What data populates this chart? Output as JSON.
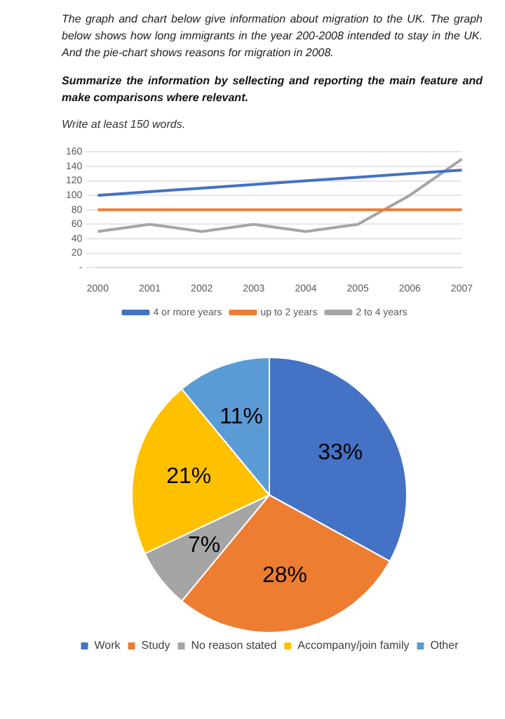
{
  "chart_data": [
    {
      "type": "line",
      "title": "The graph and chart below give information about migration to the UK. The graph below shows how long immigrants in the year 200-2008 intended to stay in the UK. And the pie-chart shows reasons for migration in 2008.",
      "subtitle": "Summarize the information by sellecting and reporting the main feature and make comparisons where relevant.",
      "annotations": [
        "Write at least 150 words."
      ],
      "categories": [
        "2000",
        "2001",
        "2002",
        "2003",
        "2004",
        "2005",
        "2006",
        "2007"
      ],
      "series": [
        {
          "name": "4 or more years",
          "color": "#4472c4",
          "values": [
            100,
            105,
            110,
            115,
            120,
            125,
            130,
            135
          ]
        },
        {
          "name": "up to 2 years",
          "color": "#ed7d31",
          "values": [
            80,
            80,
            80,
            80,
            80,
            80,
            80,
            80
          ]
        },
        {
          "name": "2 to 4 years",
          "color": "#a5a5a5",
          "values": [
            50,
            60,
            50,
            60,
            50,
            60,
            100,
            150
          ]
        }
      ],
      "ylim": [
        0,
        160
      ],
      "yticks": [
        {
          "value": 0,
          "label": "-"
        },
        20,
        40,
        60,
        80,
        100,
        120,
        140,
        160
      ],
      "grid": "y",
      "legend": "bottom",
      "marker": "none"
    },
    {
      "type": "pie",
      "categories": [
        "Work",
        "Study",
        "No reason stated",
        "Accompany/join family",
        "Other"
      ],
      "values": [
        33,
        28,
        7,
        21,
        11
      ],
      "colors": [
        "#4472c4",
        "#ed7d31",
        "#a5a5a5",
        "#ffc000",
        "#5b9bd5"
      ],
      "value_labels": [
        "33%",
        "28%",
        "7%",
        "21%",
        "11%"
      ],
      "legend": "bottom"
    }
  ]
}
